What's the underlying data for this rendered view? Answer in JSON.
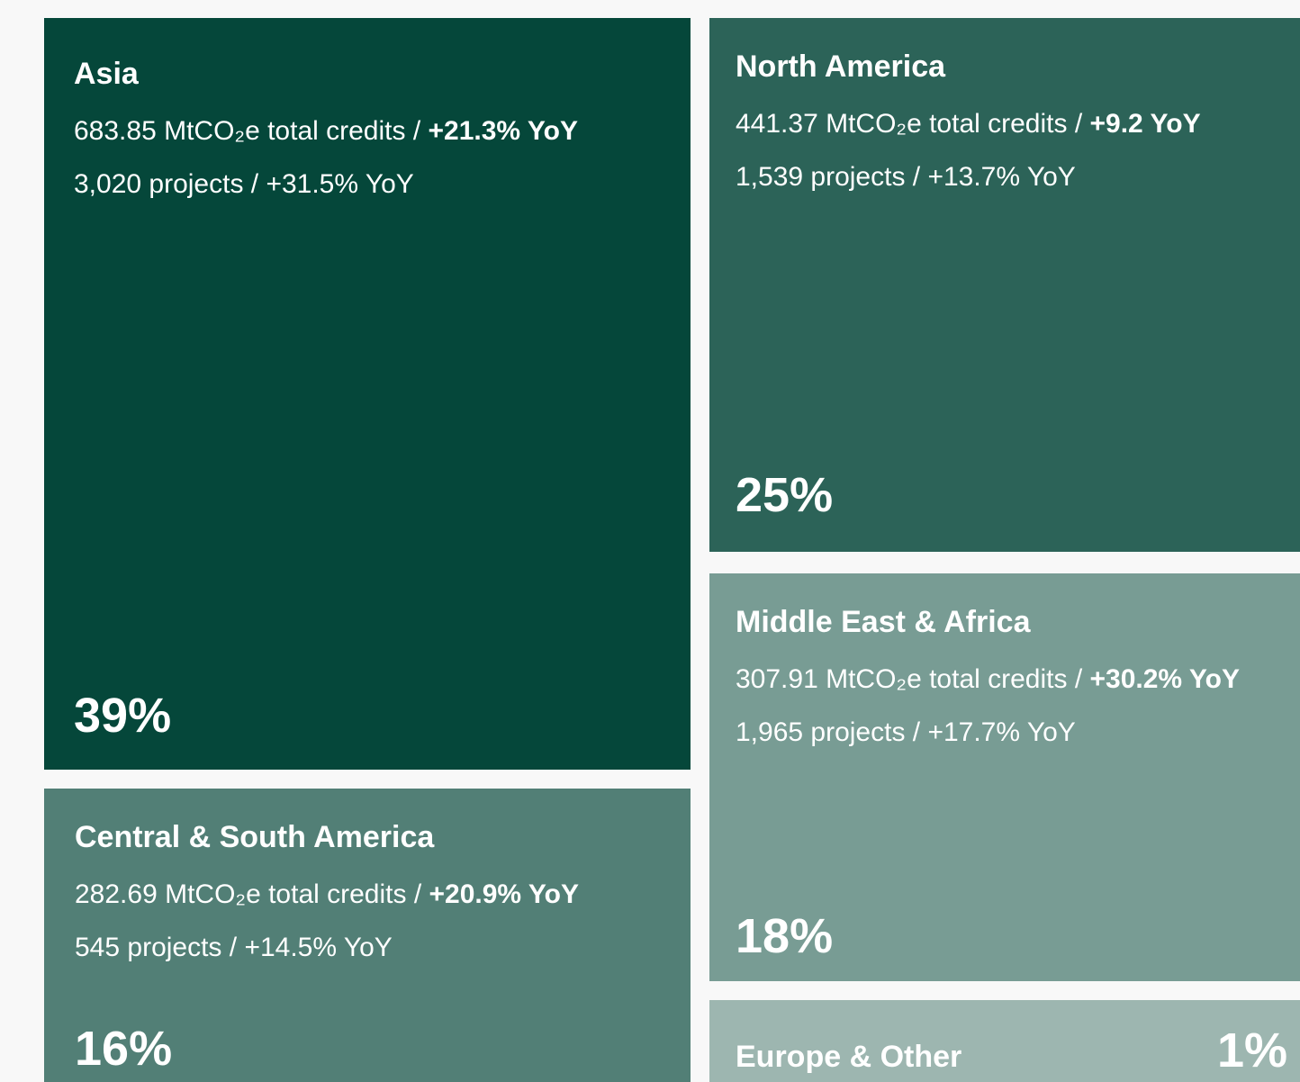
{
  "tiles": [
    {
      "name": "Asia",
      "credits": "683.85 MtCO₂e total credits /",
      "credits_yoy": "+21.3% YoY",
      "projects": "3,020 projects / +31.5% YoY",
      "share": "39%"
    },
    {
      "name": "North America",
      "credits": "441.37 MtCO₂e total credits /",
      "credits_yoy": "+9.2 YoY",
      "projects": "1,539 projects / +13.7% YoY",
      "share": "25%"
    },
    {
      "name": "Middle East & Africa",
      "credits": "307.91 MtCO₂e total credits /",
      "credits_yoy": "+30.2% YoY",
      "projects": "1,965 projects / +17.7% YoY",
      "share": "18%"
    },
    {
      "name": "Central & South America",
      "credits": "282.69 MtCO₂e total credits /",
      "credits_yoy": "+20.9% YoY",
      "projects": "545 projects / +14.5% YoY",
      "share": "16%"
    },
    {
      "name": "Europe & Other",
      "share": "1%"
    }
  ]
}
